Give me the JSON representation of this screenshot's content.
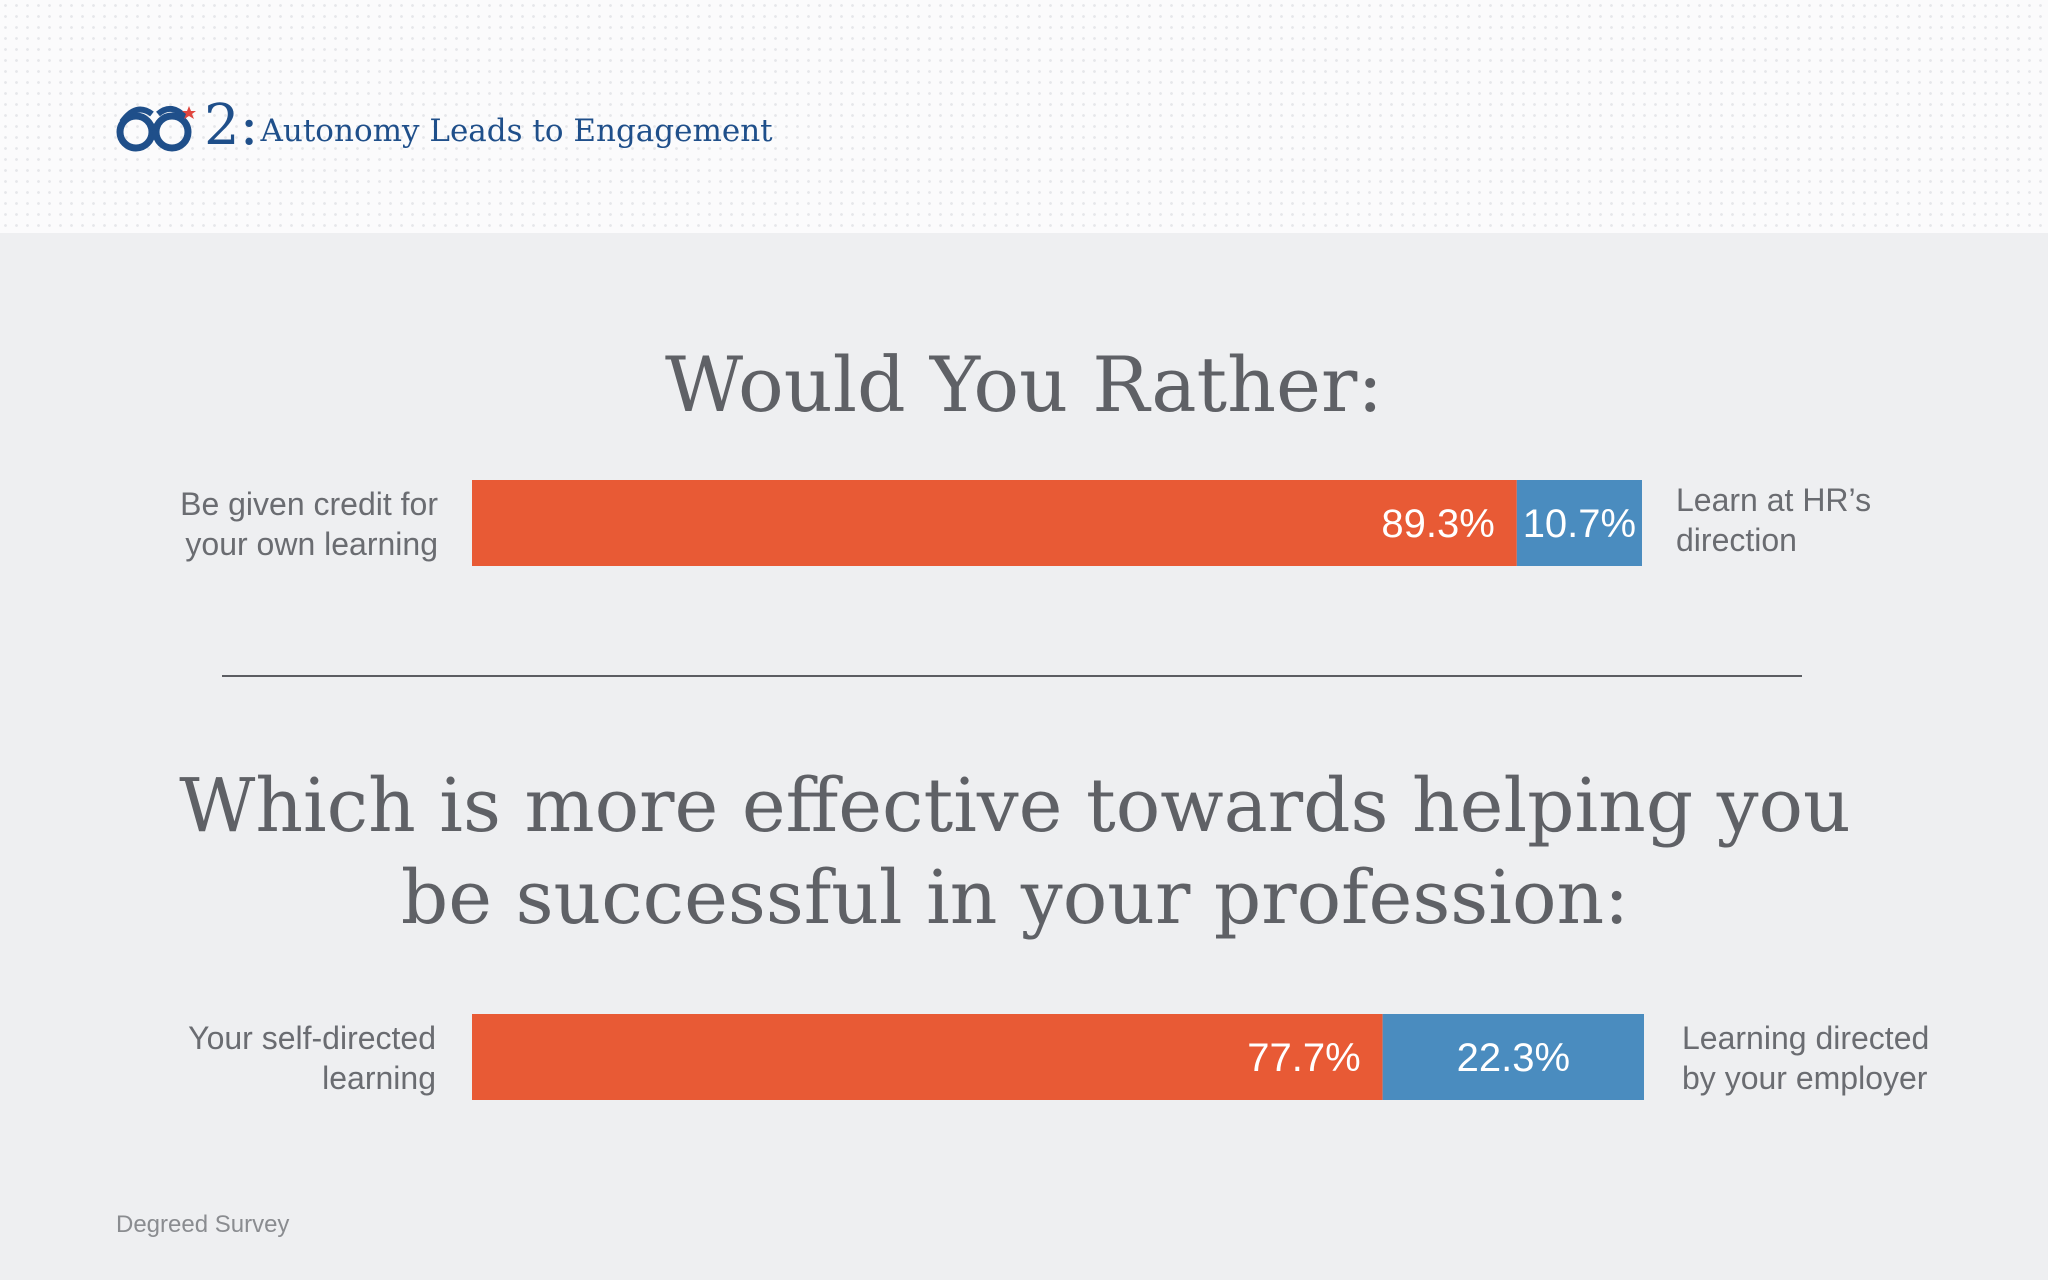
{
  "header": {
    "section_number": "2:",
    "section_title": "Autonomy Leads to Engagement",
    "logo_icon": "glasses-icon"
  },
  "colors": {
    "left_bar": "#e85a35",
    "right_bar": "#4a8cbf",
    "title_text": "#1f4f8a",
    "panel": "#eeeff1"
  },
  "chart_data": [
    {
      "type": "bar",
      "title": "Would You Rather:",
      "orientation": "horizontal-stacked",
      "unit": "%",
      "series": [
        {
          "name": "Be given credit for your own learning",
          "values": [
            89.3
          ],
          "label": "89.3%"
        },
        {
          "name": "Learn at HR’s direction",
          "values": [
            10.7
          ],
          "label": "10.7%"
        }
      ]
    },
    {
      "type": "bar",
      "title": "Which is more effective towards helping you be successful in your profession:",
      "orientation": "horizontal-stacked",
      "unit": "%",
      "series": [
        {
          "name": "Your self-directed learning",
          "values": [
            77.7
          ],
          "label": "77.7%"
        },
        {
          "name": "Learning directed by your employer",
          "values": [
            22.3
          ],
          "label": "22.3%"
        }
      ]
    }
  ],
  "labels": {
    "q1_left": [
      "Be given credit for",
      "your own learning"
    ],
    "q1_right": [
      "Learn at HR’s",
      "direction"
    ],
    "q2_left": [
      "Your self-directed",
      "learning"
    ],
    "q2_right": [
      "Learning directed",
      "by your employer"
    ]
  },
  "source": "Degreed Survey"
}
